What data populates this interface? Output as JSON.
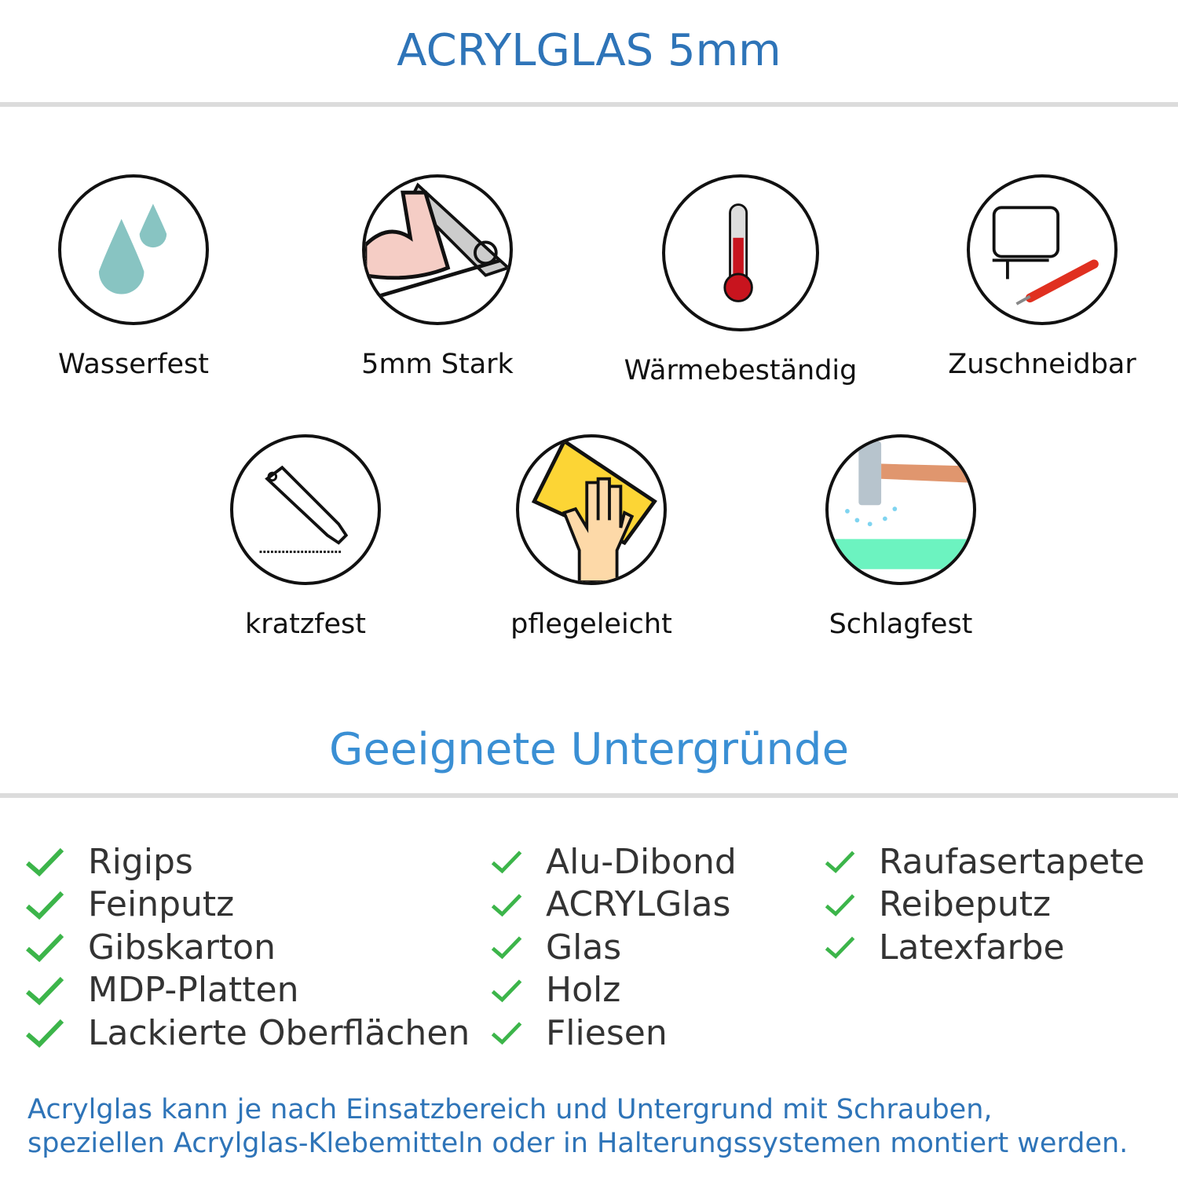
{
  "header": {
    "title": "ACRYLGLAS 5mm"
  },
  "features": [
    {
      "label": "Wasserfest",
      "icon": "water-drops-icon"
    },
    {
      "label": "5mm Stark",
      "icon": "strong-arm-icon"
    },
    {
      "label": "Wärmebeständig",
      "icon": "thermometer-icon"
    },
    {
      "label": "Zuschneidbar",
      "icon": "jigsaw-cutter-icon"
    },
    {
      "label": "kratzfest",
      "icon": "utility-knife-icon"
    },
    {
      "label": "pflegeleicht",
      "icon": "cleaning-hand-icon"
    },
    {
      "label": "Schlagfest",
      "icon": "hammer-impact-icon"
    }
  ],
  "surfaces": {
    "title": "Geeignete Untergründe",
    "columns": [
      [
        "Rigips",
        "Feinputz",
        "Gibskarton",
        "MDP-Platten",
        "Lackierte Oberflächen"
      ],
      [
        "Alu-Dibond",
        "ACRYLGlas",
        "Glas",
        "Holz",
        "Fliesen"
      ],
      [
        "Raufasertapete",
        "Reibeputz",
        "Latexfarbe"
      ]
    ]
  },
  "footer": {
    "line1": "Acrylglas kann je nach Einsatzbereich und Untergrund mit Schrauben,",
    "line2": "speziellen Acrylglas-Klebemitteln oder in Halterungssystemen montiert werden."
  },
  "colors": {
    "title": "#2e74b8",
    "subtitle": "#3a8fd4",
    "check": "#3cb54a",
    "text": "#333333"
  }
}
